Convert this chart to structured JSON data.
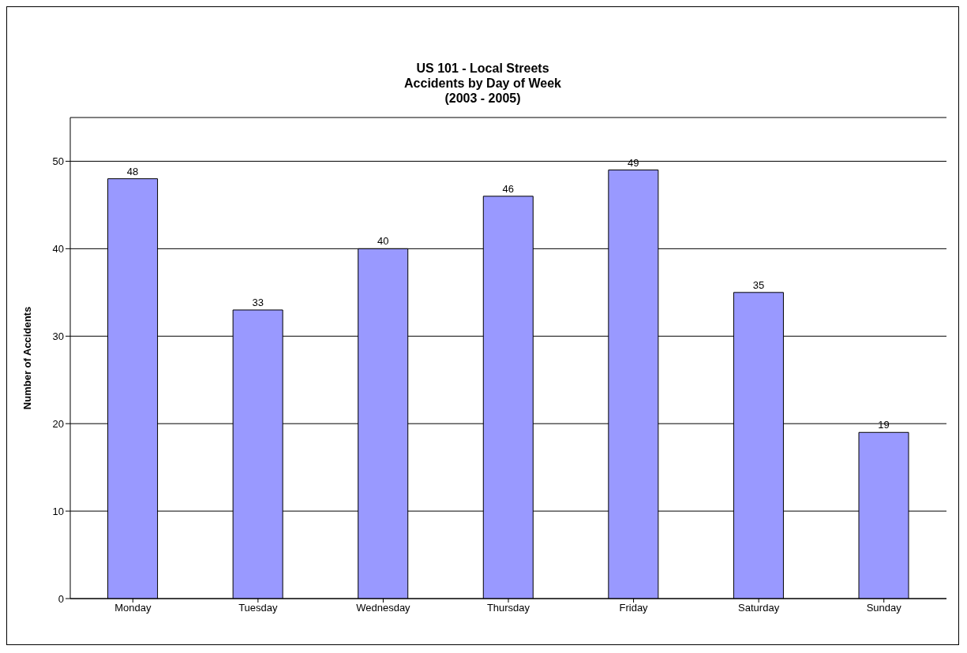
{
  "chart_data": {
    "type": "bar",
    "title": "US 101 - Local Streets\nAccidents by Day of Week\n(2003 - 2005)",
    "ylabel": "Number of Accidents",
    "categories": [
      "Monday",
      "Tuesday",
      "Wednesday",
      "Thursday",
      "Friday",
      "Saturday",
      "Sunday"
    ],
    "values": [
      48,
      33,
      40,
      46,
      49,
      35,
      19
    ],
    "color": "#9999ff",
    "ylim": [
      0,
      55
    ],
    "yticks": [
      0,
      10,
      20,
      30,
      40,
      50
    ],
    "grid": "y",
    "data_labels": true,
    "legend": false
  }
}
